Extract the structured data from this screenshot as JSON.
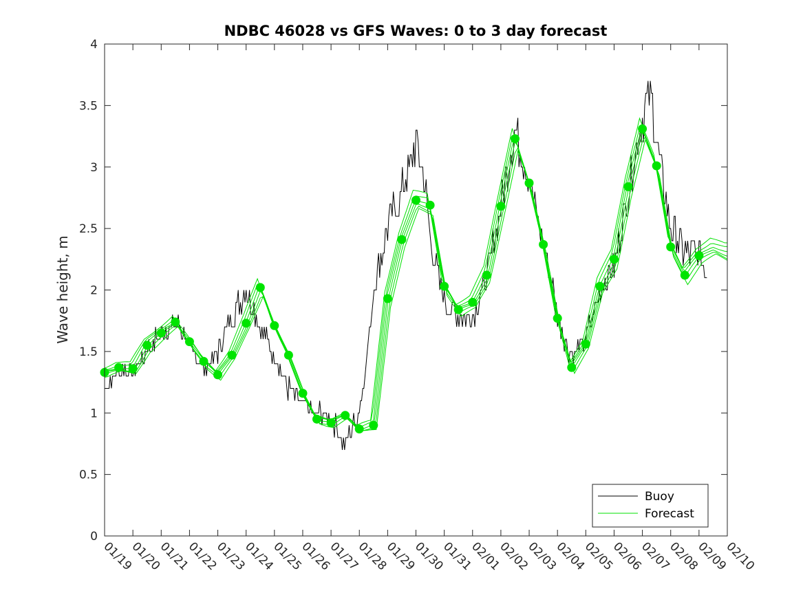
{
  "chart_data": {
    "type": "line",
    "title": "NDBC 46028 vs GFS Waves: 0 to 3 day forecast",
    "xlabel": "",
    "ylabel": "Wave height, m",
    "xlim": [
      0,
      22
    ],
    "ylim": [
      0,
      4
    ],
    "yticks": [
      0,
      0.5,
      1,
      1.5,
      2,
      2.5,
      3,
      3.5,
      4
    ],
    "ytick_labels": [
      "0",
      "0.5",
      "1",
      "1.5",
      "2",
      "2.5",
      "3",
      "3.5",
      "4"
    ],
    "xtick_labels": [
      "01/19",
      "01/20",
      "01/21",
      "01/22",
      "01/23",
      "01/24",
      "01/25",
      "01/26",
      "01/27",
      "01/28",
      "01/29",
      "01/30",
      "01/31",
      "02/01",
      "02/02",
      "02/03",
      "02/04",
      "02/05",
      "02/06",
      "02/07",
      "02/08",
      "02/09",
      "02/10"
    ],
    "legend": {
      "location": "bottom-right",
      "entries": [
        "Buoy",
        "Forecast"
      ]
    },
    "colors": {
      "buoy": "#000000",
      "forecast": "#00e000",
      "marker": "#00e400",
      "axis": "#262626"
    },
    "buoy": {
      "name": "Buoy",
      "x": [
        0,
        0.5,
        1,
        1.5,
        2,
        2.5,
        3,
        3.5,
        4,
        4.5,
        5,
        5.5,
        6,
        6.5,
        7,
        7.5,
        8,
        8.5,
        9,
        9.3,
        9.5,
        10,
        10.5,
        11,
        11.3,
        11.5,
        12,
        12.5,
        13,
        13.5,
        14,
        14.5,
        15,
        15.5,
        16,
        16.5,
        17,
        17.5,
        18,
        18.5,
        19,
        19.3,
        19.5,
        20,
        20.5,
        21,
        21.3
      ],
      "y": [
        1.2,
        1.35,
        1.35,
        1.5,
        1.65,
        1.75,
        1.55,
        1.35,
        1.5,
        1.8,
        2.0,
        1.7,
        1.45,
        1.2,
        1.05,
        1.0,
        0.95,
        0.75,
        1.0,
        1.5,
        2.0,
        2.5,
        2.8,
        3.2,
        2.9,
        2.4,
        1.9,
        1.8,
        1.8,
        2.1,
        2.7,
        3.3,
        2.9,
        2.4,
        1.8,
        1.45,
        1.6,
        2.0,
        2.2,
        2.8,
        3.4,
        3.6,
        3.2,
        2.5,
        2.3,
        2.3,
        2.1
      ]
    },
    "forecast": {
      "name": "Forecast",
      "x": [
        0,
        0.5,
        1,
        1.5,
        2,
        2.5,
        3,
        3.5,
        4,
        4.5,
        5,
        5.5,
        6,
        6.5,
        7,
        7.5,
        8,
        8.5,
        9,
        9.5,
        10,
        10.5,
        11,
        11.5,
        12,
        12.5,
        13,
        13.5,
        14,
        14.5,
        15,
        15.5,
        16,
        16.5,
        17,
        17.5,
        18,
        18.5,
        19,
        19.5,
        20,
        20.5,
        21,
        21.5,
        22
      ],
      "y": [
        1.33,
        1.37,
        1.36,
        1.55,
        1.65,
        1.74,
        1.58,
        1.42,
        1.31,
        1.47,
        1.73,
        2.02,
        1.71,
        1.47,
        1.16,
        0.95,
        0.92,
        0.98,
        0.87,
        0.9,
        1.93,
        2.41,
        2.73,
        2.69,
        2.03,
        1.84,
        1.9,
        2.12,
        2.68,
        3.23,
        2.87,
        2.37,
        1.77,
        1.37,
        1.56,
        2.03,
        2.25,
        2.84,
        3.31,
        3.01,
        2.35,
        2.12,
        2.28,
        2.35,
        2.3
      ]
    },
    "forecast_markers": {
      "x": [
        0,
        0.5,
        1,
        1.5,
        2,
        2.5,
        3,
        3.5,
        4,
        4.5,
        5,
        5.5,
        6,
        6.5,
        7,
        7.5,
        8,
        8.5,
        9,
        9.5,
        10,
        10.5,
        11,
        11.5,
        12,
        12.5,
        13,
        13.5,
        14,
        14.5,
        15,
        15.5,
        16,
        16.5,
        17,
        17.5,
        18,
        18.5,
        19,
        19.5,
        20,
        20.5,
        21
      ],
      "y": [
        1.33,
        1.37,
        1.36,
        1.55,
        1.65,
        1.74,
        1.58,
        1.42,
        1.31,
        1.47,
        1.73,
        2.02,
        1.71,
        1.47,
        1.16,
        0.95,
        0.92,
        0.98,
        0.87,
        0.9,
        1.93,
        2.41,
        2.73,
        2.69,
        2.03,
        1.84,
        1.9,
        2.12,
        2.68,
        3.23,
        2.87,
        2.37,
        1.77,
        1.37,
        1.56,
        2.03,
        2.25,
        2.84,
        3.31,
        3.01,
        2.35,
        2.12,
        2.28
      ]
    }
  }
}
